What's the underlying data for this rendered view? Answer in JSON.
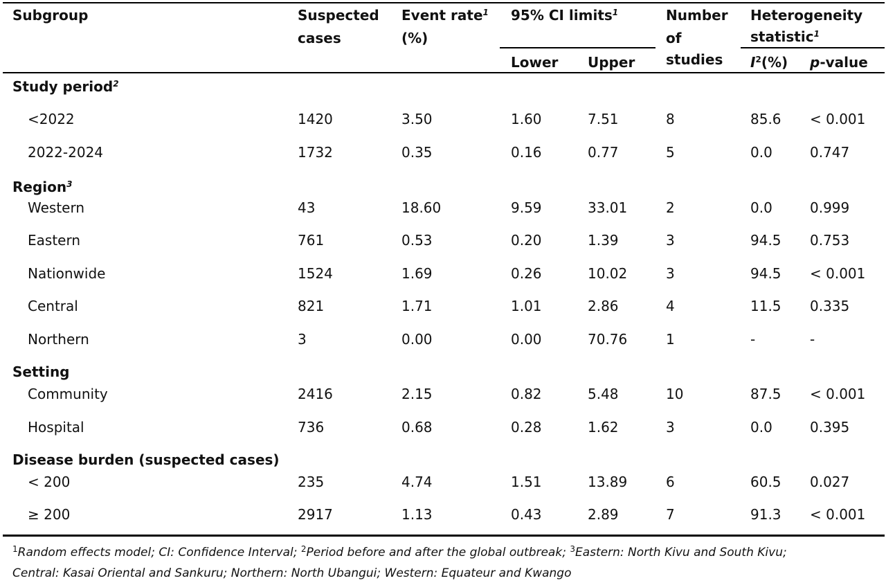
{
  "header": {
    "subgroup": "Subgroup",
    "suspected_line1": "Suspected",
    "suspected_line2": "cases",
    "event_rate_line1": "Event rate",
    "event_rate_sup": "1",
    "event_rate_line2": "(%)",
    "ci_label": "95% CI limits",
    "ci_sup": "1",
    "lower": "Lower",
    "upper": "Upper",
    "number_line1": "Number",
    "number_line2": "of",
    "number_line3": "studies",
    "het_line1": "Heterogeneity",
    "het_line2": "statistic",
    "het_sup": "1",
    "i2_letter": "I",
    "i2_sup": "2",
    "i2_unit": "(%)",
    "p_letter": "p",
    "p_rest": "-value"
  },
  "groups": [
    {
      "title": "Study period",
      "sup": "2",
      "rows": [
        {
          "label": "<2022",
          "cases": "1420",
          "rate": "3.50",
          "lower": "1.60",
          "upper": "7.51",
          "studies": "8",
          "i2": "85.6",
          "p": "< 0.001"
        },
        {
          "label": "2022-2024",
          "cases": "1732",
          "rate": "0.35",
          "lower": "0.16",
          "upper": "0.77",
          "studies": "5",
          "i2": "0.0",
          "p": "0.747"
        }
      ]
    },
    {
      "title": "Region",
      "sup": "3",
      "rows": [
        {
          "label": "Western",
          "cases": "43",
          "rate": "18.60",
          "lower": "9.59",
          "upper": "33.01",
          "studies": "2",
          "i2": "0.0",
          "p": "0.999"
        },
        {
          "label": "Eastern",
          "cases": "761",
          "rate": "0.53",
          "lower": "0.20",
          "upper": "1.39",
          "studies": "3",
          "i2": "94.5",
          "p": "0.753"
        },
        {
          "label": "Nationwide",
          "cases": "1524",
          "rate": "1.69",
          "lower": "0.26",
          "upper": "10.02",
          "studies": "3",
          "i2": "94.5",
          "p": "< 0.001"
        },
        {
          "label": "Central",
          "cases": "821",
          "rate": "1.71",
          "lower": "1.01",
          "upper": "2.86",
          "studies": "4",
          "i2": "11.5",
          "p": "0.335"
        },
        {
          "label": "Northern",
          "cases": "3",
          "rate": "0.00",
          "lower": "0.00",
          "upper": "70.76",
          "studies": "1",
          "i2": "-",
          "p": "-"
        }
      ]
    },
    {
      "title": "Setting",
      "sup": "",
      "rows": [
        {
          "label": "Community",
          "cases": "2416",
          "rate": "2.15",
          "lower": "0.82",
          "upper": "5.48",
          "studies": "10",
          "i2": "87.5",
          "p": "< 0.001"
        },
        {
          "label": "Hospital",
          "cases": "736",
          "rate": "0.68",
          "lower": "0.28",
          "upper": "1.62",
          "studies": "3",
          "i2": "0.0",
          "p": "0.395"
        }
      ]
    },
    {
      "title": "Disease burden (suspected cases)",
      "sup": "",
      "rows": [
        {
          "label": "< 200",
          "cases": "235",
          "rate": "4.74",
          "lower": "1.51",
          "upper": "13.89",
          "studies": "6",
          "i2": "60.5",
          "p": "0.027"
        },
        {
          "label": "≥ 200",
          "cases": "2917",
          "rate": "1.13",
          "lower": "0.43",
          "upper": "2.89",
          "studies": "7",
          "i2": "91.3",
          "p": "< 0.001"
        }
      ]
    }
  ],
  "footnote": {
    "sup1": "1",
    "text1": "Random effects model; CI: Confidence Interval; ",
    "sup2": "2",
    "text2": "Period before and after the global outbreak; ",
    "sup3": "3",
    "text3": "Eastern: North Kivu and South Kivu;",
    "line2": "Central: Kasai Oriental and Sankuru; Northern: North Ubangui; Western: Equateur and Kwango"
  }
}
